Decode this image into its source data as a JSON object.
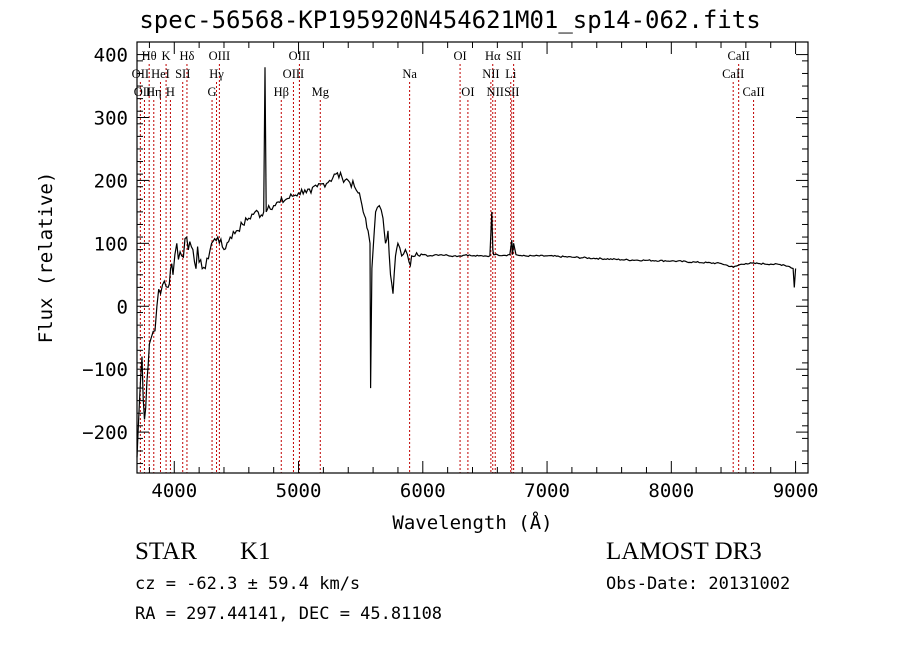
{
  "title": "spec-56568-KP195920N454621M01_sp14-062.fits",
  "info": {
    "class": "STAR",
    "subclass": "K1",
    "survey": "LAMOST DR3",
    "cz": "cz = -62.3 ± 59.4 km/s",
    "obs_date": "Obs-Date: 20131002",
    "radec": "RA = 297.44141, DEC =  45.81108"
  },
  "chart_data": {
    "type": "line",
    "title": "spec-56568-KP195920N454621M01_sp14-062.fits",
    "xlabel": "Wavelength (Å)",
    "ylabel": "Flux (relative)",
    "xlim": [
      3700,
      9100
    ],
    "ylim": [
      -265,
      420
    ],
    "xticks": [
      4000,
      5000,
      6000,
      7000,
      8000,
      9000
    ],
    "yticks": [
      -200,
      -100,
      0,
      100,
      200,
      300,
      400
    ],
    "grid": false,
    "series": [
      {
        "x": [
          3700,
          3720,
          3740,
          3760,
          3780,
          3800,
          3830,
          3860,
          3890,
          3920,
          3950,
          3970,
          3990,
          4020,
          4060,
          4100,
          4150,
          4200,
          4250,
          4300,
          4350,
          4400,
          4450,
          4500,
          4550,
          4600,
          4650,
          4700,
          4720,
          4730,
          4740,
          4760,
          4800,
          4850,
          4900,
          4950,
          5000,
          5050,
          5100,
          5150,
          5200,
          5250,
          5300,
          5350,
          5400,
          5450,
          5480,
          5500,
          5520,
          5540,
          5560,
          5575,
          5580,
          5590,
          5600,
          5610,
          5620,
          5650,
          5680,
          5700,
          5720,
          5740,
          5760,
          5780,
          5800,
          5830,
          5860,
          5890,
          5900,
          5910,
          5950,
          6000,
          6050,
          6100,
          6150,
          6200,
          6250,
          6300,
          6350,
          6400,
          6450,
          6500,
          6540,
          6555,
          6563,
          6570,
          6580,
          6600,
          6650,
          6700,
          6716,
          6722,
          6731,
          6750,
          6800,
          6900,
          7000,
          7200,
          7400,
          7600,
          7800,
          8000,
          8200,
          8400,
          8500,
          8550,
          8600,
          8700,
          8800,
          8900,
          8950,
          8980,
          8990,
          9000
        ],
        "y": [
          -240,
          -150,
          -80,
          -180,
          -120,
          -60,
          -40,
          0,
          20,
          40,
          30,
          60,
          50,
          100,
          80,
          110,
          90,
          70,
          60,
          100,
          110,
          90,
          110,
          120,
          130,
          140,
          150,
          145,
          150,
          380,
          150,
          160,
          160,
          165,
          170,
          175,
          180,
          185,
          180,
          190,
          195,
          200,
          210,
          205,
          200,
          190,
          180,
          170,
          150,
          140,
          120,
          100,
          -130,
          60,
          90,
          120,
          150,
          160,
          140,
          100,
          120,
          50,
          20,
          80,
          100,
          80,
          90,
          70,
          65,
          80,
          85,
          82,
          80,
          82,
          82,
          81,
          80,
          80,
          82,
          80,
          80,
          80,
          80,
          150,
          90,
          82,
          82,
          82,
          81,
          82,
          105,
          82,
          100,
          82,
          80,
          80,
          80,
          78,
          76,
          74,
          73,
          72,
          70,
          68,
          62,
          66,
          68,
          68,
          67,
          66,
          63,
          60,
          30,
          60
        ]
      }
    ],
    "lines": [
      {
        "name": "Hθ",
        "x": 3798,
        "row": 0
      },
      {
        "name": "OII",
        "x": 3727,
        "row": 1
      },
      {
        "name": "OIII",
        "x": 3760,
        "row": 2
      },
      {
        "name": "Hη",
        "x": 3835,
        "row": 2
      },
      {
        "name": "HeI",
        "x": 3889,
        "row": 1
      },
      {
        "name": "K",
        "x": 3934,
        "row": 0
      },
      {
        "name": "H",
        "x": 3969,
        "row": 2
      },
      {
        "name": "SII",
        "x": 4068,
        "row": 1
      },
      {
        "name": "Hδ",
        "x": 4102,
        "row": 0
      },
      {
        "name": "G",
        "x": 4304,
        "row": 2
      },
      {
        "name": "Hγ",
        "x": 4340,
        "row": 1
      },
      {
        "name": "OIII",
        "x": 4363,
        "row": 0
      },
      {
        "name": "Hβ",
        "x": 4861,
        "row": 2
      },
      {
        "name": "OIII",
        "x": 4959,
        "row": 1
      },
      {
        "name": "OIII",
        "x": 5007,
        "row": 0
      },
      {
        "name": "Mg",
        "x": 5175,
        "row": 2
      },
      {
        "name": "Na",
        "x": 5894,
        "row": 1
      },
      {
        "name": "OI",
        "x": 6300,
        "row": 0
      },
      {
        "name": "OI",
        "x": 6363,
        "row": 2
      },
      {
        "name": "NII",
        "x": 6548,
        "row": 1
      },
      {
        "name": "Hα",
        "x": 6563,
        "row": 0
      },
      {
        "name": "NII",
        "x": 6583,
        "row": 2
      },
      {
        "name": "Li",
        "x": 6708,
        "row": 1
      },
      {
        "name": "SII",
        "x": 6716,
        "row": 2
      },
      {
        "name": "SII",
        "x": 6731,
        "row": 0
      },
      {
        "name": "CaII",
        "x": 8498,
        "row": 1
      },
      {
        "name": "CaII",
        "x": 8542,
        "row": 0
      },
      {
        "name": "CaII",
        "x": 8662,
        "row": 2
      }
    ]
  }
}
